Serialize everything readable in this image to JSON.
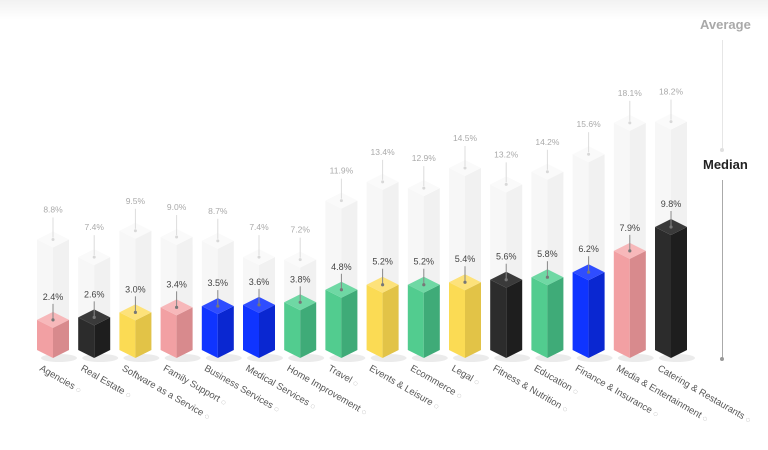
{
  "chart_data": {
    "type": "bar",
    "title": "",
    "xlabel": "",
    "ylabel": "",
    "legend": [
      "Average",
      "Median"
    ],
    "legend_position": "right",
    "grid": false,
    "categories": [
      "Agencies",
      "Real Estate",
      "Software as a Service",
      "Family Support",
      "Business Services",
      "Medical Services",
      "Home Improvement",
      "Travel",
      "Events & Leisure",
      "Ecommerce",
      "Legal",
      "Fitness & Nutrition",
      "Education",
      "Finance & Insurance",
      "Media & Entertainment",
      "Catering & Restaurants"
    ],
    "series": [
      {
        "name": "Average",
        "values": [
          8.8,
          7.4,
          9.5,
          9.0,
          8.7,
          7.4,
          7.2,
          11.9,
          13.4,
          12.9,
          14.5,
          13.2,
          14.2,
          15.6,
          18.1,
          18.2
        ]
      },
      {
        "name": "Median",
        "values": [
          2.4,
          2.6,
          3.0,
          3.4,
          3.5,
          3.6,
          3.8,
          4.8,
          5.2,
          5.2,
          5.4,
          5.6,
          5.8,
          6.2,
          7.9,
          9.8
        ]
      }
    ],
    "avg_labels": [
      "8.8%",
      "7.4%",
      "9.5%",
      "9.0%",
      "8.7%",
      "7.4%",
      "7.2%",
      "11.9%",
      "13.4%",
      "12.9%",
      "14.5%",
      "13.2%",
      "14.2%",
      "15.6%",
      "18.1%",
      "18.2%"
    ],
    "median_labels": [
      "2.4%",
      "2.6%",
      "3.0%",
      "3.4%",
      "3.5%",
      "3.6%",
      "3.8%",
      "4.8%",
      "5.2%",
      "5.2%",
      "5.4%",
      "5.6%",
      "5.8%",
      "6.2%",
      "7.9%",
      "9.8%"
    ],
    "bar_colors": [
      "pink",
      "black",
      "yellow",
      "pink",
      "blue",
      "blue",
      "green",
      "green",
      "yellow",
      "green",
      "yellow",
      "black",
      "green",
      "blue",
      "pink",
      "black"
    ],
    "category_icons": [
      "megaphone-icon",
      "house-icon",
      "gear-icon",
      "family-icon",
      "briefcase-icon",
      "eye-icon",
      "toolbox-icon",
      "plane-icon",
      "calendar-icon",
      "cart-icon",
      "scales-icon",
      "dumbbell-icon",
      "book-icon",
      "coin-icon",
      "play-icon",
      "chef-icon"
    ]
  },
  "palette": {
    "pink": {
      "front": "#f2a0a3",
      "side": "#d88a8d",
      "top": "#f7b8ba"
    },
    "black": {
      "front": "#2c2c2c",
      "side": "#1e1e1e",
      "top": "#3a3a3a"
    },
    "yellow": {
      "front": "#fbdb54",
      "side": "#e2c347",
      "top": "#fde27a"
    },
    "blue": {
      "front": "#0f34ff",
      "side": "#0a27d1",
      "top": "#2f4dff"
    },
    "green": {
      "front": "#52cc8f",
      "side": "#3fab78",
      "top": "#6fd8a4"
    },
    "ghost": {
      "front": "#f7f7f7",
      "side": "#f1f1f1",
      "top": "#fafafa"
    }
  },
  "legend": {
    "average": "Average",
    "median": "Median"
  }
}
